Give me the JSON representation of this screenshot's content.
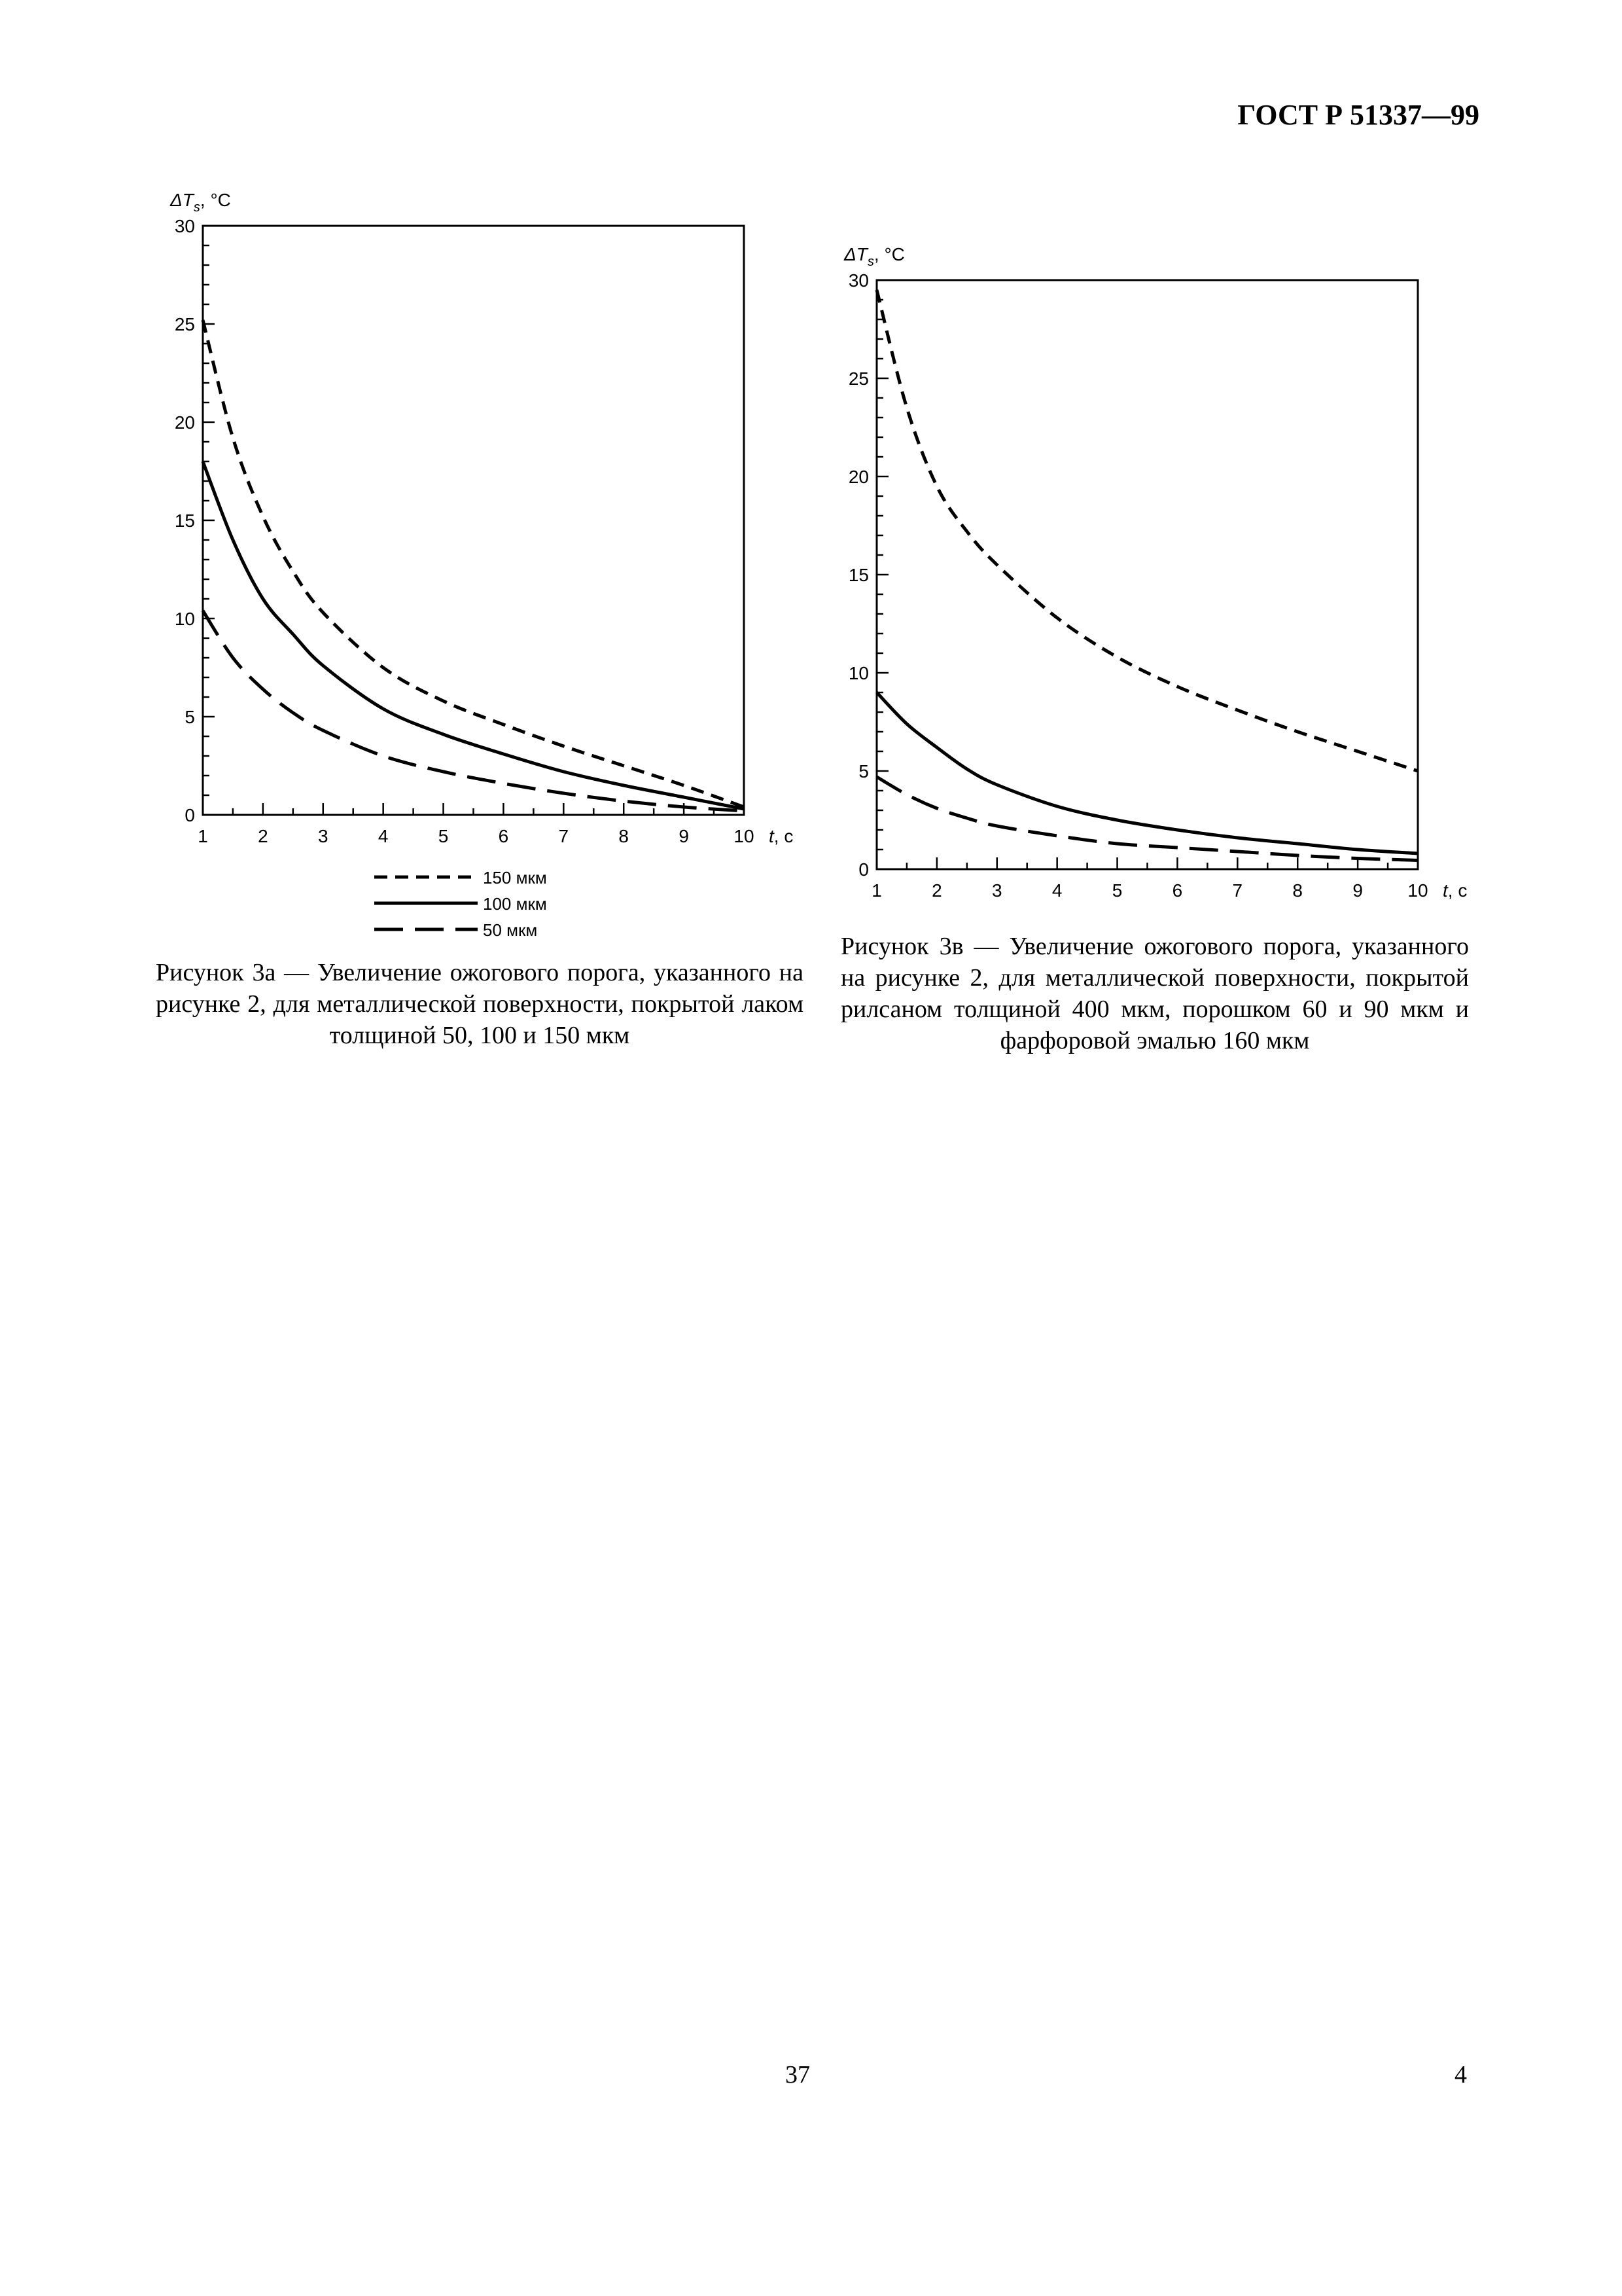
{
  "header": {
    "doc_id": "ГОСТ Р 51337—99"
  },
  "charts": [
    {
      "id": "a",
      "caption": "Рисунок 3а — Увеличение ожогового порога, указанного на рисунке 2, для металлической поверхности, покрытой лаком толщиной 50, 100 и 150 мкм"
    },
    {
      "id": "b",
      "caption": "Рисунок 3в — Увеличение ожогового порога, указанного на рисунке 2, для металлической поверхности, покрытой рилсаном толщиной 400 мкм, порошком 60 и 90 мкм и фарфоровой эмалью 160 мкм"
    }
  ],
  "footer": {
    "page_left": "37",
    "page_right": "4"
  },
  "chart_data": [
    {
      "type": "line",
      "ylabel_main": "ΔT",
      "ylabel_sub": "s",
      "ylabel_unit": ", °C",
      "xlabel": "t, с",
      "xlim": [
        1,
        10
      ],
      "ylim": [
        0,
        30
      ],
      "x_ticks": [
        1,
        2,
        3,
        4,
        5,
        6,
        7,
        8,
        9,
        10
      ],
      "y_ticks": [
        0,
        5,
        10,
        15,
        20,
        25,
        30
      ],
      "grid": false,
      "legend_position": "bottom-center",
      "series": [
        {
          "name": "150 мкм",
          "style": "short-dash",
          "x": [
            1,
            1.5,
            2,
            2.5,
            3,
            4,
            5,
            6,
            7,
            8,
            9,
            10
          ],
          "y": [
            25.2,
            19.2,
            15.2,
            12.4,
            10.3,
            7.5,
            5.8,
            4.6,
            3.5,
            2.5,
            1.5,
            0.4
          ]
        },
        {
          "name": "100 мкм",
          "style": "solid",
          "x": [
            1,
            1.5,
            2,
            2.5,
            3,
            4,
            5,
            6,
            7,
            8,
            9,
            10
          ],
          "y": [
            18.0,
            14.0,
            11.0,
            9.2,
            7.6,
            5.4,
            4.1,
            3.1,
            2.2,
            1.5,
            0.9,
            0.3
          ]
        },
        {
          "name": "50 мкм",
          "style": "long-dash",
          "x": [
            1,
            1.5,
            2,
            2.5,
            3,
            4,
            5,
            6,
            7,
            8,
            9,
            10
          ],
          "y": [
            10.4,
            8.0,
            6.4,
            5.2,
            4.3,
            3.0,
            2.2,
            1.6,
            1.1,
            0.7,
            0.4,
            0.2
          ]
        }
      ]
    },
    {
      "type": "line",
      "ylabel_main": "ΔT",
      "ylabel_sub": "s",
      "ylabel_unit": ", °C",
      "xlabel": "t, с",
      "xlim": [
        1,
        10
      ],
      "ylim": [
        0,
        30
      ],
      "x_ticks": [
        1,
        2,
        3,
        4,
        5,
        6,
        7,
        8,
        9,
        10
      ],
      "y_ticks": [
        0,
        5,
        10,
        15,
        20,
        25,
        30
      ],
      "grid": false,
      "legend_position": "none",
      "series": [
        {
          "style": "short-dash",
          "x": [
            1,
            1.5,
            2,
            2.5,
            3,
            4,
            5,
            6,
            7,
            8,
            9,
            10
          ],
          "y": [
            29.5,
            23.5,
            19.5,
            17.2,
            15.5,
            12.8,
            10.8,
            9.3,
            8.1,
            7.0,
            6.0,
            5.0
          ]
        },
        {
          "style": "solid",
          "x": [
            1,
            1.5,
            2,
            2.5,
            3,
            4,
            5,
            6,
            7,
            8,
            9,
            10
          ],
          "y": [
            9.0,
            7.4,
            6.2,
            5.1,
            4.3,
            3.2,
            2.5,
            2.0,
            1.6,
            1.3,
            1.0,
            0.8
          ]
        },
        {
          "style": "long-dash",
          "x": [
            1,
            1.5,
            2,
            2.5,
            3,
            4,
            5,
            6,
            7,
            8,
            9,
            10
          ],
          "y": [
            4.7,
            3.8,
            3.1,
            2.6,
            2.2,
            1.7,
            1.3,
            1.1,
            0.9,
            0.7,
            0.55,
            0.45
          ]
        }
      ]
    }
  ]
}
